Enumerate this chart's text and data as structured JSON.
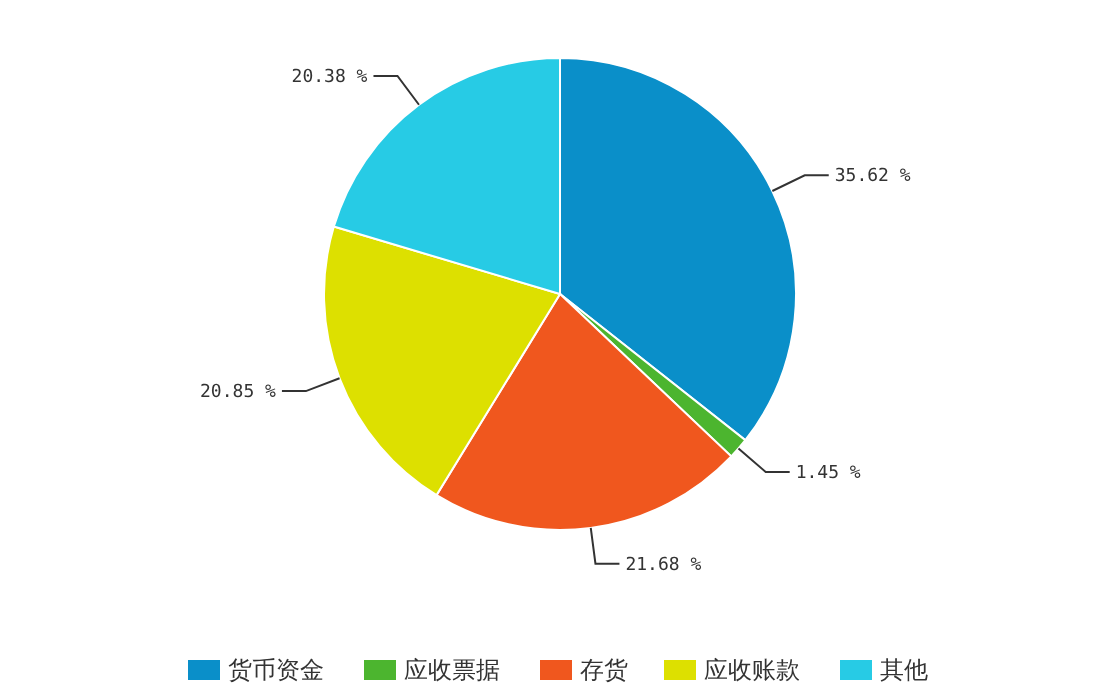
{
  "chart_data": {
    "type": "pie",
    "categories": [
      "货币资金",
      "应收票据",
      "存货",
      "应收账款",
      "其他"
    ],
    "values": [
      35.62,
      1.45,
      21.68,
      20.85,
      20.38
    ],
    "colors": [
      "#0a8fc9",
      "#4cb52f",
      "#f0571e",
      "#dde000",
      "#27cbe5"
    ],
    "value_labels": [
      "35.62 %",
      "1.45 %",
      "21.68 %",
      "20.85 %",
      "20.38 %"
    ],
    "legend": "bottom"
  }
}
